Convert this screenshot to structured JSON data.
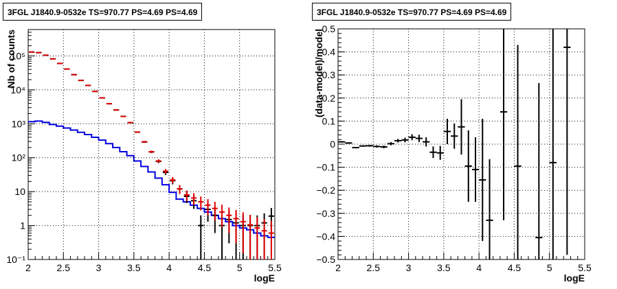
{
  "chart_data": [
    {
      "type": "line",
      "title": "3FGL J1840.9-0532e TS=970.77 PS=4.69 PS=4.69",
      "xlabel": "logE",
      "ylabel": "Nb of counts",
      "xlim": [
        2,
        5.5
      ],
      "ylim": [
        0.1,
        600000
      ],
      "yscale": "log",
      "grid": true,
      "xticks": [
        "2",
        "2.5",
        "3",
        "3.5",
        "4",
        "4.5",
        "5",
        "5.5"
      ],
      "yticks": [
        {
          "value": 0.1,
          "label": "10⁻¹"
        },
        {
          "value": 1,
          "label": "1"
        },
        {
          "value": 10,
          "label": "10"
        },
        {
          "value": 100,
          "label": "10²"
        },
        {
          "value": 1000,
          "label": "10³"
        },
        {
          "value": 10000,
          "label": "10⁴"
        },
        {
          "value": 100000,
          "label": "10⁵"
        }
      ],
      "colors": {
        "data": "#000000",
        "total_model": "#e00000",
        "source_model": "#0000e0"
      },
      "bin_edges": [
        2.0,
        2.1,
        2.2,
        2.3,
        2.4,
        2.5,
        2.6,
        2.7,
        2.8,
        2.9,
        3.0,
        3.1,
        3.2,
        3.3,
        3.4,
        3.5,
        3.6,
        3.7,
        3.8,
        3.9,
        4.0,
        4.1,
        4.2,
        4.3,
        4.4,
        4.5,
        4.6,
        4.7,
        4.8,
        4.9,
        5.0,
        5.1,
        5.2,
        5.3,
        5.4,
        5.5
      ],
      "series": [
        {
          "key": "data",
          "style": "points",
          "values": [
            130000,
            125000,
            105000,
            82000,
            60000,
            41000,
            28000,
            19000,
            13500,
            9000,
            5800,
            3900,
            2550,
            1650,
            1080,
            565,
            290,
            148,
            78,
            37,
            21,
            12,
            7.3,
            5.4,
            1.0,
            3.0,
            2.0,
            1.0,
            1.5,
            1.2,
            1.0,
            1.0,
            1.0,
            1.2,
            1.9
          ],
          "err": [
            350,
            350,
            320,
            290,
            245,
            200,
            165,
            140,
            115,
            95,
            75,
            62,
            50,
            40,
            33,
            24,
            17,
            12,
            9,
            6,
            4.6,
            3.5,
            2.7,
            2.3,
            1.0,
            1.7,
            1.4,
            1.0,
            1.2,
            1.1,
            1.0,
            1.0,
            1.0,
            1.1,
            1.4
          ]
        },
        {
          "key": "total_model",
          "style": "points",
          "values": [
            130000,
            125000,
            105000,
            82000,
            60000,
            41000,
            28000,
            19000,
            13500,
            9000,
            5800,
            3900,
            2550,
            1650,
            1080,
            570,
            295,
            150,
            80,
            40,
            22,
            12,
            8.0,
            6.5,
            5.0,
            4.0,
            3.2,
            2.5,
            2.0,
            1.6,
            1.3,
            1.05,
            0.85,
            0.7,
            0.6
          ],
          "err": [
            360,
            350,
            325,
            285,
            245,
            200,
            165,
            138,
            116,
            95,
            76,
            62,
            50,
            41,
            33,
            24,
            17,
            12,
            9,
            6.3,
            4.7,
            3.5,
            2.8,
            2.5,
            2.2,
            2.0,
            1.8,
            1.6,
            1.4,
            1.3,
            1.15,
            1.02,
            0.92,
            0.84,
            0.77
          ]
        },
        {
          "key": "source_model",
          "style": "step",
          "values": [
            1150,
            1200,
            1100,
            950,
            850,
            750,
            650,
            560,
            480,
            400,
            330,
            260,
            200,
            150,
            115,
            80,
            55,
            38,
            25,
            16,
            9.5,
            6.0,
            5.0,
            4.0,
            3.2,
            2.5,
            2.0,
            1.6,
            1.3,
            1.0,
            0.85,
            0.75,
            0.6,
            0.5,
            0.45
          ]
        }
      ]
    },
    {
      "type": "scatter",
      "title": "3FGL J1840.9-0532e TS=970.77 PS=4.69 PS=4.69",
      "xlabel": "logE",
      "ylabel": "(data-model)/model",
      "xlim": [
        2,
        5.5
      ],
      "ylim": [
        -0.5,
        0.5
      ],
      "grid": true,
      "xticks": [
        "2",
        "2.5",
        "3",
        "3.5",
        "4",
        "4.5",
        "5",
        "5.5"
      ],
      "yticks": [
        "−0.5",
        "−0.4",
        "−0.3",
        "−0.2",
        "−0.1",
        "0",
        "0.1",
        "0.2",
        "0.3",
        "0.4",
        "0.5"
      ],
      "color": "#000000",
      "points": [
        {
          "x": 2.05,
          "y": 0.01,
          "err": 0.003
        },
        {
          "x": 2.15,
          "y": 0.005,
          "err": 0.003
        },
        {
          "x": 2.25,
          "y": -0.015,
          "err": 0.003
        },
        {
          "x": 2.35,
          "y": -0.008,
          "err": 0.003
        },
        {
          "x": 2.45,
          "y": -0.007,
          "err": 0.004
        },
        {
          "x": 2.55,
          "y": -0.01,
          "err": 0.005
        },
        {
          "x": 2.65,
          "y": -0.012,
          "err": 0.006
        },
        {
          "x": 2.75,
          "y": 0.002,
          "err": 0.007
        },
        {
          "x": 2.85,
          "y": 0.015,
          "err": 0.008
        },
        {
          "x": 2.95,
          "y": 0.018,
          "err": 0.01
        },
        {
          "x": 3.05,
          "y": 0.03,
          "err": 0.013
        },
        {
          "x": 3.15,
          "y": 0.025,
          "err": 0.016
        },
        {
          "x": 3.25,
          "y": 0.01,
          "err": 0.02
        },
        {
          "x": 3.35,
          "y": -0.035,
          "err": 0.025
        },
        {
          "x": 3.45,
          "y": -0.038,
          "err": 0.03
        },
        {
          "x": 3.55,
          "y": 0.055,
          "err": 0.055
        },
        {
          "x": 3.65,
          "y": 0.035,
          "err": 0.055
        },
        {
          "x": 3.75,
          "y": 0.075,
          "err": 0.12
        },
        {
          "x": 3.85,
          "y": -0.095,
          "err": 0.155
        },
        {
          "x": 3.95,
          "y": -0.11,
          "err": 0.14
        },
        {
          "x": 4.05,
          "y": -0.155,
          "err": 0.265
        },
        {
          "x": 4.15,
          "y": -0.33,
          "err": 0.265
        },
        {
          "x": 4.35,
          "y": 0.14,
          "err": 0.47
        },
        {
          "x": 4.55,
          "y": -0.095,
          "err": 0.525
        },
        {
          "x": 4.85,
          "y": -0.405,
          "err": 0.67
        },
        {
          "x": 5.05,
          "y": -0.08,
          "err": 0.6
        },
        {
          "x": 5.25,
          "y": 0.42,
          "err": 0.9
        }
      ]
    }
  ]
}
